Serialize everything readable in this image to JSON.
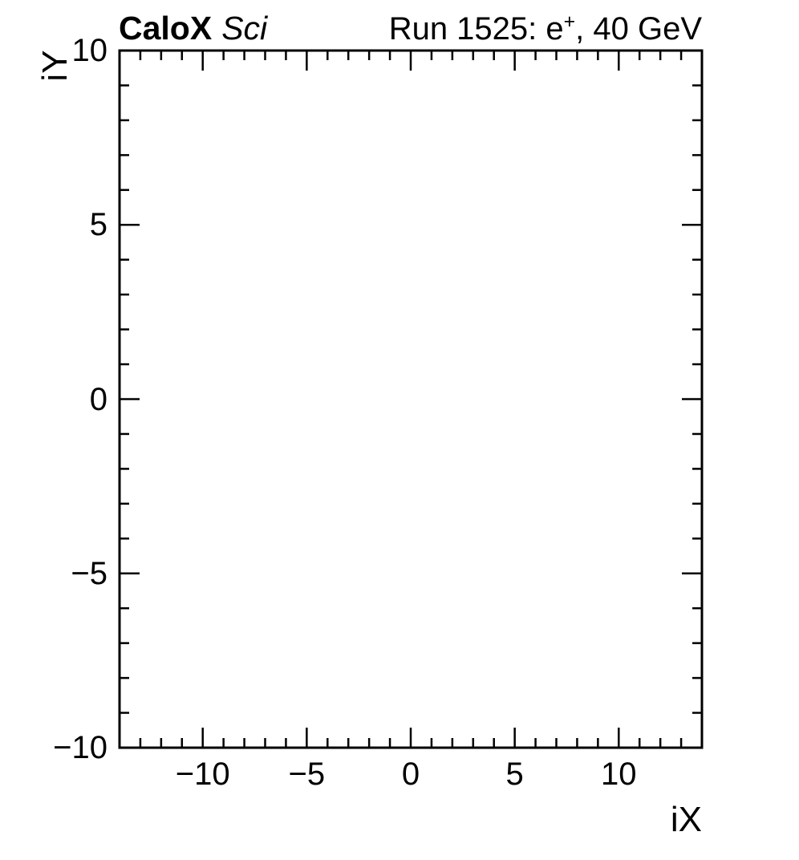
{
  "header": {
    "experiment": "CaloX",
    "experiment_tag": "Sci",
    "right_title_pre": "Run 1525: e",
    "right_title_sup": "+",
    "right_title_post": ", 40 GeV"
  },
  "chart_data": {
    "type": "heatmap",
    "title": "",
    "xlabel": "iX",
    "ylabel": "iY",
    "xlim": [
      -14,
      14
    ],
    "ylim": [
      -10,
      10
    ],
    "x_major_ticks": [
      -10,
      -5,
      0,
      5,
      10
    ],
    "x_tick_labels": [
      "−10",
      "−5",
      "0",
      "5",
      "10"
    ],
    "x_minor_step": 1,
    "y_major_ticks": [
      -10,
      -5,
      0,
      5,
      10
    ],
    "y_tick_labels": [
      "−10",
      "−5",
      "0",
      "5",
      "10"
    ],
    "y_minor_step": 1,
    "grid": false,
    "legend": false,
    "series": [],
    "frame_color": "#000000",
    "background_color": "#ffffff",
    "tick_style": "inward, mirrored on all four sides"
  }
}
